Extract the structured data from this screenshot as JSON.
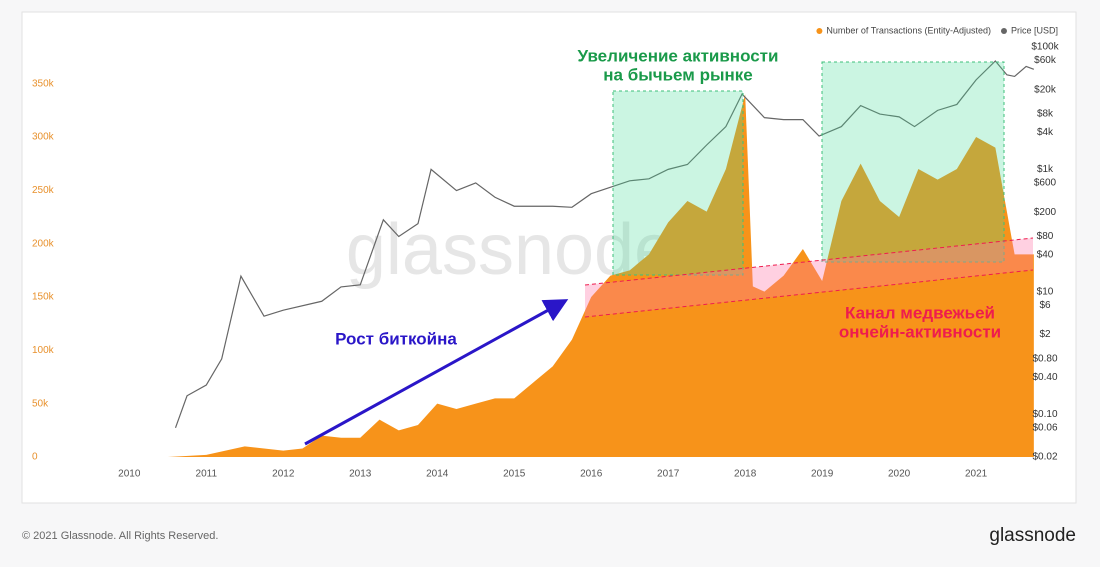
{
  "chart_data": {
    "type": "area",
    "watermark": "glassnode",
    "footer": "© 2021 Glassnode. All Rights Reserved.",
    "brand": "glassnode",
    "xlim": [
      2008.71,
      2021.83
    ],
    "xticks": [
      2010,
      2011,
      2012,
      2013,
      2014,
      2015,
      2016,
      2017,
      2018,
      2019,
      2020,
      2021
    ],
    "ylim": [
      0,
      390000
    ],
    "yticks": [
      0,
      {
        "value": 50000,
        "label": "50k"
      },
      {
        "value": 100000,
        "label": "100k"
      },
      {
        "value": 150000,
        "label": "150k"
      },
      {
        "value": 200000,
        "label": "200k"
      },
      {
        "value": 250000,
        "label": "250k"
      },
      {
        "value": 300000,
        "label": "300k"
      },
      {
        "value": 350000,
        "label": "350k"
      }
    ],
    "y2lim": [
      0.02,
      125000
    ],
    "y2log": true,
    "y2ticks": [
      {
        "value": 100000,
        "label": "$100k"
      },
      {
        "value": 60000,
        "label": "$60k"
      },
      {
        "value": 20000,
        "label": "$20k"
      },
      {
        "value": 8000,
        "label": "$8k"
      },
      {
        "value": 4000,
        "label": "$4k"
      },
      {
        "value": 1000,
        "label": "$1k"
      },
      {
        "value": 600,
        "label": "$600"
      },
      {
        "value": 200,
        "label": "$200"
      },
      {
        "value": 80,
        "label": "$80"
      },
      {
        "value": 40,
        "label": "$40"
      },
      {
        "value": 10,
        "label": "$10"
      },
      {
        "value": 6,
        "label": "$6"
      },
      {
        "value": 2,
        "label": "$2"
      },
      {
        "value": 0.8,
        "label": "$0.80"
      },
      {
        "value": 0.4,
        "label": "$0.40"
      },
      {
        "value": 0.1,
        "label": "$0.10"
      },
      {
        "value": 0.06,
        "label": "$0.06"
      },
      {
        "value": 0.02,
        "label": "$0.02"
      }
    ],
    "series": [
      {
        "name": "Number of Transactions (Entity-Adjusted)",
        "color": "#f7931a",
        "x": [
          2010.5,
          2011.0,
          2011.5,
          2012.0,
          2012.25,
          2012.5,
          2012.75,
          2013.0,
          2013.25,
          2013.5,
          2013.75,
          2014.0,
          2014.25,
          2014.5,
          2014.75,
          2015.0,
          2015.25,
          2015.5,
          2015.75,
          2016.0,
          2016.25,
          2016.5,
          2016.75,
          2017.0,
          2017.25,
          2017.5,
          2017.75,
          2018.0,
          2018.1,
          2018.25,
          2018.5,
          2018.75,
          2019.0,
          2019.25,
          2019.5,
          2019.75,
          2020.0,
          2020.25,
          2020.5,
          2020.75,
          2021.0,
          2021.25,
          2021.5,
          2021.75
        ],
        "values": [
          0,
          2000,
          10000,
          6000,
          8000,
          20000,
          18000,
          18000,
          35000,
          25000,
          30000,
          50000,
          45000,
          50000,
          55000,
          55000,
          70000,
          85000,
          110000,
          150000,
          170000,
          175000,
          190000,
          220000,
          240000,
          230000,
          270000,
          340000,
          160000,
          155000,
          170000,
          195000,
          165000,
          240000,
          275000,
          240000,
          225000,
          270000,
          260000,
          270000,
          300000,
          290000,
          190000,
          190000
        ]
      },
      {
        "name": "Price [USD]",
        "color": "#666666",
        "axis": "y2",
        "x": [
          2010.6,
          2010.75,
          2011.0,
          2011.2,
          2011.45,
          2011.75,
          2012.0,
          2012.5,
          2012.75,
          2013.0,
          2013.3,
          2013.5,
          2013.75,
          2013.92,
          2014.25,
          2014.5,
          2014.75,
          2015.0,
          2015.5,
          2015.75,
          2016.0,
          2016.5,
          2016.75,
          2017.0,
          2017.25,
          2017.5,
          2017.75,
          2017.96,
          2018.25,
          2018.5,
          2018.75,
          2018.96,
          2019.25,
          2019.5,
          2019.75,
          2020.0,
          2020.2,
          2020.5,
          2020.75,
          2021.0,
          2021.25,
          2021.4,
          2021.5,
          2021.65,
          2021.75
        ],
        "values": [
          0.06,
          0.2,
          0.3,
          0.8,
          18,
          4,
          5,
          7,
          12,
          13,
          150,
          80,
          130,
          1000,
          450,
          600,
          350,
          250,
          250,
          240,
          400,
          650,
          700,
          1000,
          1200,
          2500,
          5000,
          17000,
          7000,
          6500,
          6500,
          3500,
          5000,
          11000,
          8000,
          7200,
          5000,
          9200,
          11500,
          29000,
          59000,
          35000,
          33000,
          48000,
          43000
        ]
      }
    ],
    "annotations": [
      {
        "color": "#1a9a4a",
        "lines": [
          "Увеличение активности",
          "на бычьем рынке"
        ]
      },
      {
        "color": "#2a16c8",
        "lines": [
          "Рост биткойна"
        ]
      },
      {
        "color": "#ee1c4e",
        "lines": [
          "Канал медвежьей",
          "ончейн-активности"
        ]
      }
    ]
  }
}
